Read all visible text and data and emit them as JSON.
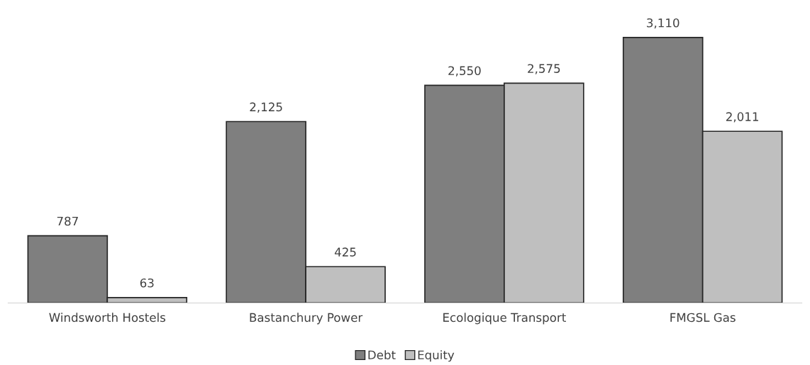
{
  "chart_data": {
    "type": "bar",
    "categories": [
      "Windsworth Hostels",
      "Bastanchury Power",
      "Ecologique Transport",
      "FMGSL Gas"
    ],
    "series": [
      {
        "name": "Debt",
        "color": "#7f7f7f",
        "values": [
          787,
          2125,
          2550,
          3110
        ],
        "value_labels": [
          "787",
          "2,125",
          "2,550",
          "3,110"
        ]
      },
      {
        "name": "Equity",
        "color": "#bfbfbf",
        "values": [
          63,
          425,
          2575,
          2011
        ],
        "value_labels": [
          "63",
          "425",
          "2,575",
          "2,011"
        ]
      }
    ],
    "legend": "bottom"
  }
}
